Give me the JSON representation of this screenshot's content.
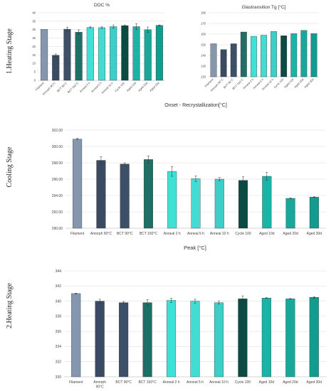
{
  "stages": {
    "heating1": "1.Heating Stage",
    "cooling": "Cooling Stage",
    "heating2": "2.Heating Stage"
  },
  "chart_data": [
    {
      "type": "bar",
      "title": "DOC  %",
      "categories": [
        "Filament",
        "Amorph 90°C",
        "BCT 90°C",
        "BCT 150°C",
        "Anneal 2 h",
        "Anneal 5 h",
        "Anneal 10 h",
        "Cycle 100",
        "Aged 10d",
        "Aged 20d",
        "Aged 30d"
      ],
      "values": [
        30.2,
        14.8,
        30.3,
        28.5,
        31.3,
        31.2,
        31.8,
        32.4,
        31.8,
        30.0,
        32.5
      ],
      "errors": [
        0,
        0.8,
        1.2,
        1.4,
        0.4,
        0.5,
        1.0,
        0.4,
        1.8,
        1.6,
        0.3
      ],
      "ylim": [
        0,
        40
      ],
      "yticks": [
        0,
        5,
        10,
        15,
        20,
        25,
        30,
        35,
        40
      ],
      "grid": true,
      "colors": [
        "#8597ae",
        "#3a4a63",
        "#3e5068",
        "#1e6f65",
        "#3fe0d5",
        "#44dcd2",
        "#3ecec8",
        "#0c4a44",
        "#1bb3a6",
        "#18a89b",
        "#129c8f"
      ]
    },
    {
      "type": "bar",
      "title": "Glastransition Tg [°C]",
      "categories": [
        "Filament",
        "Amorph 90°C",
        "BCT 90°C",
        "BCT 150°C",
        "Anneal 2 h",
        "Anneal 5 h",
        "Anneal 10 h",
        "Cycle 100",
        "Aged 10d",
        "Aged 20d",
        "Aged 30d"
      ],
      "values": [
        151,
        145.5,
        151,
        162,
        158,
        159,
        162.5,
        158.5,
        160.5,
        163.5,
        160.5
      ],
      "ylim": [
        120,
        180
      ],
      "yticks": [
        120,
        130,
        140,
        150,
        160,
        170,
        180
      ],
      "grid": true,
      "colors": [
        "#8597ae",
        "#3a4a63",
        "#3e5068",
        "#1e6f65",
        "#3fe0d5",
        "#44dcd2",
        "#3ecec8",
        "#0c4a44",
        "#1bb3a6",
        "#18a89b",
        "#129c8f"
      ]
    },
    {
      "type": "bar",
      "title": "Onset - Recrystallization[°C]",
      "categories": [
        "Filament",
        "Amorph 90°C",
        "BCT 90°C",
        "BCT 150°C",
        "Anneal 2 h",
        "Anneal 5 h",
        "Anneal 10 h",
        "Cycle 100",
        "Aged 10d",
        "Aged 20d",
        "Aged 30d"
      ],
      "values": [
        300.9,
        298.3,
        297.85,
        298.4,
        296.95,
        296.05,
        296.0,
        295.85,
        296.35,
        293.65,
        293.8
      ],
      "errors": [
        0.1,
        0.45,
        0.15,
        0.45,
        0.6,
        0.35,
        0.2,
        0.45,
        0.5,
        0.05,
        0.05
      ],
      "ylim": [
        290,
        302
      ],
      "yticks": [
        290.0,
        292.0,
        294.0,
        296.0,
        298.0,
        300.0,
        302.0
      ],
      "grid": true,
      "colors": [
        "#8597ae",
        "#3a4a63",
        "#3e5068",
        "#1e6f65",
        "#3fe0d5",
        "#44dcd2",
        "#3ecec8",
        "#0c4a44",
        "#1bb3a6",
        "#18a89b",
        "#129c8f"
      ]
    },
    {
      "type": "bar",
      "title": "Peak [°C]",
      "categories": [
        "Filament",
        "Amorph 90°C",
        "BCT 90°C",
        "BCT 150°C",
        "Anneal 2 h",
        "Anneal 5 h",
        "Anneal 10 h",
        "Cycle 100",
        "Aged 10d",
        "Aged 20d",
        "Aged 30d"
      ],
      "values": [
        341.0,
        340.0,
        339.8,
        339.8,
        340.1,
        340.0,
        339.8,
        340.3,
        340.4,
        340.3,
        340.5
      ],
      "errors": [
        0.05,
        0.25,
        0.15,
        0.4,
        0.3,
        0.25,
        0.2,
        0.4,
        0.05,
        0.05,
        0.1
      ],
      "ylim": [
        330,
        344
      ],
      "yticks": [
        330,
        332,
        334,
        336,
        338,
        340,
        342,
        344
      ],
      "grid": true,
      "colors": [
        "#8597ae",
        "#3a4a63",
        "#3e5068",
        "#1e6f65",
        "#3fe0d5",
        "#44dcd2",
        "#3ecec8",
        "#0c4a44",
        "#1bb3a6",
        "#18a89b",
        "#129c8f"
      ]
    }
  ]
}
